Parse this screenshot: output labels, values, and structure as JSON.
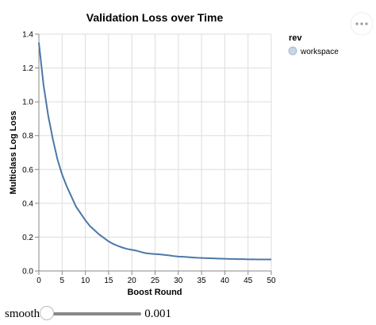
{
  "chart_data": {
    "type": "line",
    "title": "Validation Loss over Time",
    "x_label": "Boost Round",
    "y_label": "Multiclass Log Loss",
    "x": [
      0,
      1,
      2,
      3,
      4,
      5,
      6,
      7,
      8,
      9,
      10,
      11,
      12,
      13,
      14,
      15,
      16,
      17,
      18,
      19,
      20,
      21,
      22,
      23,
      24,
      25,
      26,
      27,
      28,
      29,
      30,
      31,
      32,
      33,
      34,
      35,
      36,
      37,
      38,
      39,
      40,
      41,
      42,
      43,
      44,
      45,
      46,
      47,
      48,
      49,
      50
    ],
    "series": [
      {
        "name": "workspace",
        "color": "#4c78a8",
        "values": [
          1.35,
          1.1,
          0.92,
          0.78,
          0.66,
          0.57,
          0.5,
          0.44,
          0.38,
          0.34,
          0.3,
          0.265,
          0.24,
          0.215,
          0.195,
          0.175,
          0.16,
          0.148,
          0.138,
          0.13,
          0.125,
          0.12,
          0.112,
          0.105,
          0.102,
          0.1,
          0.098,
          0.095,
          0.092,
          0.088,
          0.085,
          0.084,
          0.082,
          0.08,
          0.078,
          0.077,
          0.076,
          0.075,
          0.074,
          0.073,
          0.072,
          0.071,
          0.071,
          0.07,
          0.07,
          0.069,
          0.069,
          0.068,
          0.068,
          0.068,
          0.068
        ]
      }
    ],
    "legend_title": "rev",
    "xlim": [
      0,
      50
    ],
    "xticks": [
      0,
      5,
      10,
      15,
      20,
      25,
      30,
      35,
      40,
      45,
      50
    ],
    "ylim": [
      0,
      1.4
    ],
    "yticks": [
      {
        "value": 0,
        "label": "0.0"
      },
      0.2,
      0.4,
      0.6,
      0.8,
      {
        "value": 1,
        "label": "1.0"
      },
      1.2,
      1.4
    ],
    "grid": true,
    "legend": "right"
  },
  "slider": {
    "label": "smooth",
    "value_label": "0.001"
  }
}
